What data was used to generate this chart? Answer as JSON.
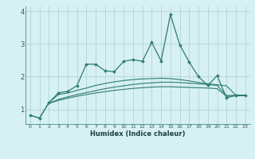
{
  "xlabel": "Humidex (Indice chaleur)",
  "bg_color": "#d6f0f3",
  "grid_color": "#b8d8dc",
  "line_color": "#2e7d6e",
  "xmin": -0.5,
  "xmax": 23.5,
  "ymin": 0.55,
  "ymax": 4.15,
  "yticks": [
    1,
    2,
    3,
    4
  ],
  "xticks": [
    0,
    1,
    2,
    3,
    4,
    5,
    6,
    7,
    8,
    9,
    10,
    11,
    12,
    13,
    14,
    15,
    16,
    17,
    18,
    19,
    20,
    21,
    22,
    23
  ],
  "spiky_x": [
    0,
    1,
    2,
    3,
    4,
    5,
    6,
    7,
    8,
    9,
    10,
    11,
    12,
    13,
    14,
    15,
    16,
    17,
    18,
    19,
    20,
    21,
    22,
    23
  ],
  "spiky_y": [
    0.82,
    0.73,
    1.2,
    1.5,
    1.55,
    1.72,
    2.38,
    2.38,
    2.18,
    2.15,
    2.47,
    2.52,
    2.47,
    3.05,
    2.48,
    3.9,
    2.97,
    2.45,
    2.0,
    1.73,
    2.03,
    1.35,
    1.43,
    1.43
  ],
  "line2_x": [
    0,
    1,
    2,
    3,
    4,
    5,
    6,
    7,
    8,
    9,
    10,
    11,
    12,
    13,
    14,
    15,
    16,
    17,
    18,
    19,
    20,
    21,
    22,
    23
  ],
  "line2_y": [
    0.82,
    0.73,
    1.2,
    1.45,
    1.5,
    1.58,
    1.65,
    1.73,
    1.79,
    1.84,
    1.88,
    1.91,
    1.93,
    1.94,
    1.95,
    1.94,
    1.91,
    1.87,
    1.82,
    1.78,
    1.75,
    1.72,
    1.43,
    1.43
  ],
  "line3_x": [
    2,
    3,
    4,
    5,
    6,
    7,
    8,
    9,
    10,
    11,
    12,
    13,
    14,
    15,
    16,
    17,
    18,
    19,
    20,
    21,
    22,
    23
  ],
  "line3_y": [
    1.18,
    1.3,
    1.38,
    1.45,
    1.51,
    1.57,
    1.63,
    1.68,
    1.72,
    1.76,
    1.79,
    1.81,
    1.83,
    1.83,
    1.82,
    1.8,
    1.78,
    1.76,
    1.73,
    1.42,
    1.43,
    1.43
  ],
  "line4_x": [
    2,
    3,
    4,
    5,
    6,
    7,
    8,
    9,
    10,
    11,
    12,
    13,
    14,
    15,
    16,
    17,
    18,
    19,
    20,
    21,
    22,
    23
  ],
  "line4_y": [
    1.18,
    1.27,
    1.34,
    1.4,
    1.45,
    1.5,
    1.54,
    1.58,
    1.61,
    1.64,
    1.66,
    1.68,
    1.69,
    1.69,
    1.68,
    1.67,
    1.66,
    1.65,
    1.63,
    1.4,
    1.41,
    1.42
  ]
}
